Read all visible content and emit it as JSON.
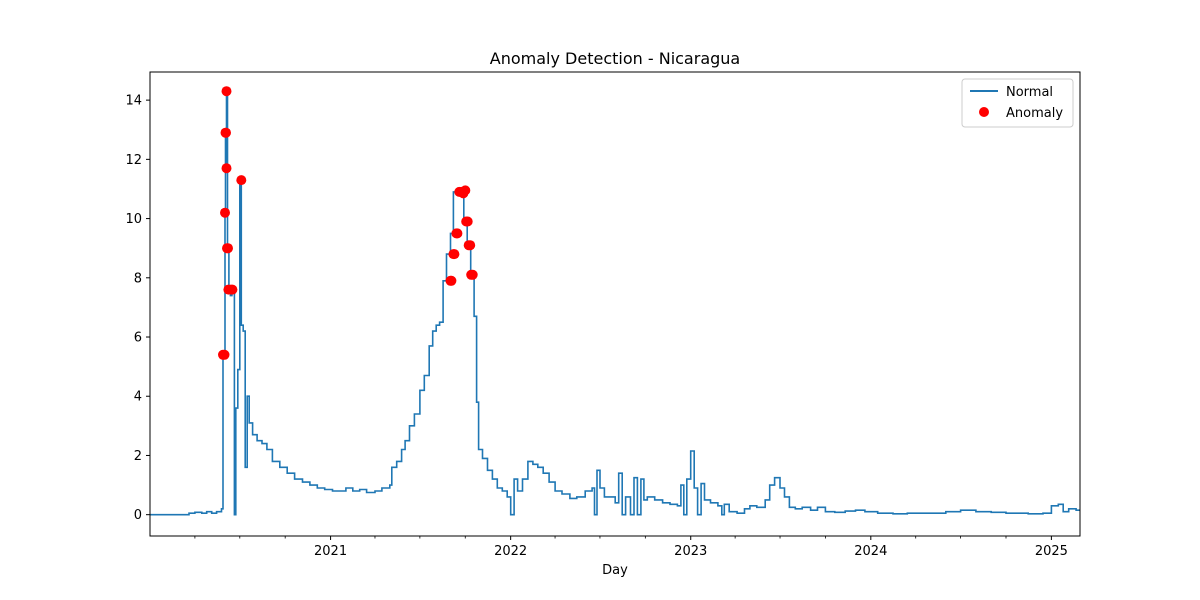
{
  "chart_data": {
    "type": "line",
    "title": "Anomaly Detection - Nicaragua",
    "xlabel": "Day",
    "ylabel": "",
    "xlim": [
      "2020-01-01",
      "2025-02-28"
    ],
    "ylim": [
      -0.72,
      14.95
    ],
    "x_tick_labels": [
      "2021",
      "2022",
      "2023",
      "2024",
      "2025"
    ],
    "x_tick_dates": [
      "2021-01-01",
      "2022-01-01",
      "2023-01-01",
      "2024-01-01",
      "2025-01-01"
    ],
    "y_ticks": [
      0,
      2,
      4,
      6,
      8,
      10,
      12,
      14
    ],
    "y_tick_labels": [
      "0",
      "2",
      "4",
      "6",
      "8",
      "10",
      "12",
      "14"
    ],
    "legend": {
      "position": "top-right",
      "entries": [
        {
          "label": "Normal",
          "kind": "line",
          "color": "#1f77b4"
        },
        {
          "label": "Anomaly",
          "kind": "scatter",
          "color": "#ff0000"
        }
      ]
    },
    "series": [
      {
        "name": "Normal",
        "color": "#1f77b4",
        "kind": "step-line",
        "points": [
          [
            "2020-01-01",
            0
          ],
          [
            "2020-03-15",
            0
          ],
          [
            "2020-03-20",
            0.05
          ],
          [
            "2020-04-01",
            0.08
          ],
          [
            "2020-04-15",
            0.05
          ],
          [
            "2020-04-25",
            0.1
          ],
          [
            "2020-05-05",
            0.05
          ],
          [
            "2020-05-15",
            0.1
          ],
          [
            "2020-05-25",
            0.2
          ],
          [
            "2020-05-28",
            5.4
          ],
          [
            "2020-06-01",
            10.2
          ],
          [
            "2020-06-02",
            12.9
          ],
          [
            "2020-06-03",
            11.7
          ],
          [
            "2020-06-04",
            14.3
          ],
          [
            "2020-06-06",
            9.0
          ],
          [
            "2020-06-09",
            7.6
          ],
          [
            "2020-06-12",
            7.4
          ],
          [
            "2020-06-15",
            7.6
          ],
          [
            "2020-06-18",
            7.6
          ],
          [
            "2020-06-20",
            0
          ],
          [
            "2020-06-23",
            3.6
          ],
          [
            "2020-06-27",
            4.9
          ],
          [
            "2020-07-01",
            11.3
          ],
          [
            "2020-07-04",
            6.4
          ],
          [
            "2020-07-08",
            6.2
          ],
          [
            "2020-07-12",
            1.6
          ],
          [
            "2020-07-16",
            4.0
          ],
          [
            "2020-07-20",
            3.1
          ],
          [
            "2020-07-27",
            2.7
          ],
          [
            "2020-08-05",
            2.5
          ],
          [
            "2020-08-15",
            2.4
          ],
          [
            "2020-08-25",
            2.2
          ],
          [
            "2020-09-05",
            1.8
          ],
          [
            "2020-09-20",
            1.6
          ],
          [
            "2020-10-05",
            1.4
          ],
          [
            "2020-10-20",
            1.2
          ],
          [
            "2020-11-05",
            1.1
          ],
          [
            "2020-11-20",
            1.0
          ],
          [
            "2020-12-05",
            0.9
          ],
          [
            "2020-12-20",
            0.85
          ],
          [
            "2021-01-05",
            0.8
          ],
          [
            "2021-01-20",
            0.8
          ],
          [
            "2021-02-01",
            0.9
          ],
          [
            "2021-02-15",
            0.8
          ],
          [
            "2021-03-01",
            0.85
          ],
          [
            "2021-03-15",
            0.75
          ],
          [
            "2021-04-01",
            0.8
          ],
          [
            "2021-04-15",
            0.9
          ],
          [
            "2021-05-01",
            1.0
          ],
          [
            "2021-05-05",
            1.6
          ],
          [
            "2021-05-15",
            1.8
          ],
          [
            "2021-05-25",
            2.2
          ],
          [
            "2021-06-01",
            2.5
          ],
          [
            "2021-06-10",
            3.0
          ],
          [
            "2021-06-20",
            3.4
          ],
          [
            "2021-07-01",
            4.2
          ],
          [
            "2021-07-10",
            4.7
          ],
          [
            "2021-07-20",
            5.7
          ],
          [
            "2021-07-27",
            6.2
          ],
          [
            "2021-08-03",
            6.4
          ],
          [
            "2021-08-10",
            6.5
          ],
          [
            "2021-08-17",
            7.9
          ],
          [
            "2021-08-24",
            8.8
          ],
          [
            "2021-09-01",
            9.5
          ],
          [
            "2021-09-07",
            10.9
          ],
          [
            "2021-09-14",
            10.8
          ],
          [
            "2021-09-21",
            10.9
          ],
          [
            "2021-09-28",
            9.9
          ],
          [
            "2021-10-05",
            9.1
          ],
          [
            "2021-10-12",
            8.1
          ],
          [
            "2021-10-19",
            6.7
          ],
          [
            "2021-10-24",
            3.8
          ],
          [
            "2021-10-28",
            2.2
          ],
          [
            "2021-11-05",
            1.9
          ],
          [
            "2021-11-15",
            1.5
          ],
          [
            "2021-11-25",
            1.2
          ],
          [
            "2021-12-05",
            0.9
          ],
          [
            "2021-12-15",
            0.8
          ],
          [
            "2021-12-25",
            0.6
          ],
          [
            "2022-01-01",
            0
          ],
          [
            "2022-01-08",
            1.2
          ],
          [
            "2022-01-15",
            0.8
          ],
          [
            "2022-01-25",
            1.2
          ],
          [
            "2022-02-05",
            1.8
          ],
          [
            "2022-02-15",
            1.7
          ],
          [
            "2022-02-25",
            1.6
          ],
          [
            "2022-03-08",
            1.4
          ],
          [
            "2022-03-20",
            1.1
          ],
          [
            "2022-04-01",
            0.8
          ],
          [
            "2022-04-15",
            0.7
          ],
          [
            "2022-05-01",
            0.55
          ],
          [
            "2022-05-15",
            0.6
          ],
          [
            "2022-06-01",
            0.8
          ],
          [
            "2022-06-15",
            0.9
          ],
          [
            "2022-06-20",
            0
          ],
          [
            "2022-06-25",
            1.5
          ],
          [
            "2022-07-01",
            0.9
          ],
          [
            "2022-07-10",
            0.6
          ],
          [
            "2022-07-25",
            0.6
          ],
          [
            "2022-08-01",
            0.4
          ],
          [
            "2022-08-08",
            1.4
          ],
          [
            "2022-08-15",
            0
          ],
          [
            "2022-08-22",
            0.6
          ],
          [
            "2022-09-01",
            0
          ],
          [
            "2022-09-08",
            1.25
          ],
          [
            "2022-09-15",
            0
          ],
          [
            "2022-09-22",
            1.2
          ],
          [
            "2022-09-28",
            0.5
          ],
          [
            "2022-10-05",
            0.6
          ],
          [
            "2022-10-20",
            0.5
          ],
          [
            "2022-11-05",
            0.4
          ],
          [
            "2022-11-20",
            0.35
          ],
          [
            "2022-12-05",
            0.3
          ],
          [
            "2022-12-12",
            1.0
          ],
          [
            "2022-12-18",
            0
          ],
          [
            "2022-12-24",
            1.2
          ],
          [
            "2023-01-01",
            2.15
          ],
          [
            "2023-01-08",
            0.9
          ],
          [
            "2023-01-15",
            0
          ],
          [
            "2023-01-22",
            1.05
          ],
          [
            "2023-01-29",
            0.5
          ],
          [
            "2023-02-10",
            0.4
          ],
          [
            "2023-02-25",
            0.3
          ],
          [
            "2023-03-05",
            0
          ],
          [
            "2023-03-10",
            0.35
          ],
          [
            "2023-03-20",
            0.1
          ],
          [
            "2023-04-05",
            0.05
          ],
          [
            "2023-04-20",
            0.2
          ],
          [
            "2023-05-01",
            0.3
          ],
          [
            "2023-05-15",
            0.25
          ],
          [
            "2023-06-01",
            0.5
          ],
          [
            "2023-06-10",
            1.0
          ],
          [
            "2023-06-20",
            1.25
          ],
          [
            "2023-07-01",
            0.9
          ],
          [
            "2023-07-10",
            0.6
          ],
          [
            "2023-07-20",
            0.25
          ],
          [
            "2023-08-01",
            0.2
          ],
          [
            "2023-08-15",
            0.25
          ],
          [
            "2023-09-01",
            0.15
          ],
          [
            "2023-09-15",
            0.25
          ],
          [
            "2023-10-01",
            0.1
          ],
          [
            "2023-10-20",
            0.08
          ],
          [
            "2023-11-10",
            0.12
          ],
          [
            "2023-12-01",
            0.15
          ],
          [
            "2023-12-20",
            0.1
          ],
          [
            "2024-01-15",
            0.05
          ],
          [
            "2024-02-15",
            0.03
          ],
          [
            "2024-03-15",
            0.05
          ],
          [
            "2024-05-01",
            0.05
          ],
          [
            "2024-06-01",
            0.1
          ],
          [
            "2024-07-01",
            0.15
          ],
          [
            "2024-08-01",
            0.1
          ],
          [
            "2024-09-01",
            0.08
          ],
          [
            "2024-10-01",
            0.05
          ],
          [
            "2024-11-15",
            0.03
          ],
          [
            "2024-12-15",
            0.05
          ],
          [
            "2025-01-01",
            0.3
          ],
          [
            "2025-01-15",
            0.35
          ],
          [
            "2025-01-25",
            0.1
          ],
          [
            "2025-02-05",
            0.2
          ],
          [
            "2025-02-20",
            0.15
          ],
          [
            "2025-02-28",
            0.15
          ]
        ]
      },
      {
        "name": "Anomaly",
        "color": "#ff0000",
        "kind": "scatter",
        "points": [
          [
            "2020-05-28",
            5.4
          ],
          [
            "2020-05-31",
            5.4
          ],
          [
            "2020-06-01",
            10.2
          ],
          [
            "2020-06-02",
            12.9
          ],
          [
            "2020-06-03",
            12.9
          ],
          [
            "2020-06-04",
            11.7
          ],
          [
            "2020-06-04",
            14.3
          ],
          [
            "2020-06-05",
            9.0
          ],
          [
            "2020-06-07",
            9.0
          ],
          [
            "2020-06-08",
            7.6
          ],
          [
            "2020-06-13",
            7.6
          ],
          [
            "2020-06-16",
            7.6
          ],
          [
            "2020-07-04",
            11.3
          ],
          [
            "2021-09-01",
            7.9
          ],
          [
            "2021-09-03",
            7.9
          ],
          [
            "2021-09-07",
            8.8
          ],
          [
            "2021-09-09",
            8.8
          ],
          [
            "2021-09-13",
            9.5
          ],
          [
            "2021-09-15",
            9.5
          ],
          [
            "2021-09-19",
            10.9
          ],
          [
            "2021-09-23",
            10.9
          ],
          [
            "2021-09-27",
            10.85
          ],
          [
            "2021-10-01",
            10.95
          ],
          [
            "2021-10-03",
            9.9
          ],
          [
            "2021-10-06",
            9.9
          ],
          [
            "2021-10-08",
            9.1
          ],
          [
            "2021-10-11",
            9.1
          ],
          [
            "2021-10-13",
            8.1
          ],
          [
            "2021-10-16",
            8.1
          ]
        ]
      }
    ]
  }
}
